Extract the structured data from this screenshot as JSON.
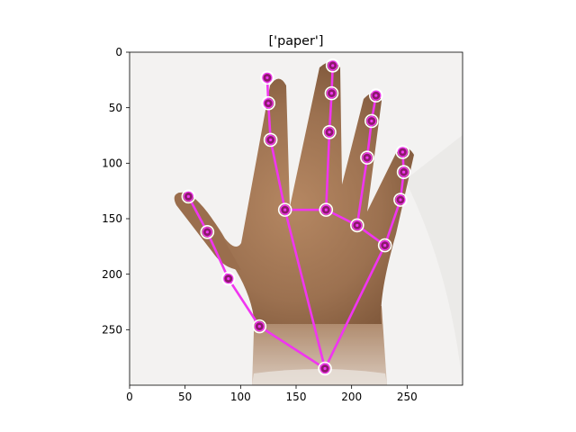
{
  "title": "['paper']",
  "image": {
    "subject": "hand photo",
    "width": 300,
    "height": 300
  },
  "axes": {
    "x": {
      "min": 0,
      "max": 300,
      "ticks": [
        0,
        50,
        100,
        150,
        200,
        250
      ]
    },
    "y": {
      "min": 0,
      "max": 300,
      "inverted": true,
      "ticks": [
        0,
        50,
        100,
        150,
        200,
        250
      ]
    }
  },
  "colors": {
    "skeleton": "#f035f0",
    "keypoint_fill": "#8b1a6b",
    "keypoint_ring": "#ffffff"
  },
  "keypoints": [
    [
      176,
      285
    ],
    [
      117,
      247
    ],
    [
      89,
      204
    ],
    [
      70,
      162
    ],
    [
      53,
      130
    ],
    [
      140,
      142
    ],
    [
      127,
      79
    ],
    [
      125,
      46
    ],
    [
      124,
      23
    ],
    [
      177,
      142
    ],
    [
      180,
      72
    ],
    [
      182,
      37
    ],
    [
      183,
      12
    ],
    [
      205,
      156
    ],
    [
      214,
      95
    ],
    [
      218,
      62
    ],
    [
      222,
      39
    ],
    [
      230,
      174
    ],
    [
      244,
      133
    ],
    [
      247,
      108
    ],
    [
      246,
      90
    ]
  ],
  "connections": [
    [
      0,
      1
    ],
    [
      1,
      2
    ],
    [
      2,
      3
    ],
    [
      3,
      4
    ],
    [
      0,
      5
    ],
    [
      5,
      6
    ],
    [
      6,
      7
    ],
    [
      7,
      8
    ],
    [
      5,
      9
    ],
    [
      9,
      10
    ],
    [
      10,
      11
    ],
    [
      11,
      12
    ],
    [
      9,
      13
    ],
    [
      13,
      14
    ],
    [
      14,
      15
    ],
    [
      15,
      16
    ],
    [
      13,
      17
    ],
    [
      17,
      18
    ],
    [
      18,
      19
    ],
    [
      19,
      20
    ],
    [
      0,
      17
    ]
  ]
}
